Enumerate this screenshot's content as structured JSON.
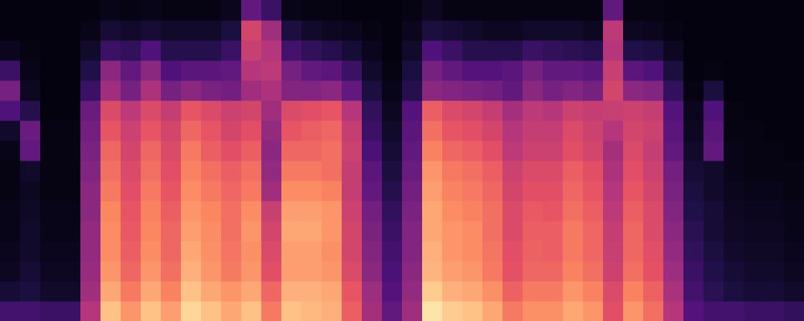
{
  "chart_data": {
    "type": "heatmap",
    "xlim": [
      0,
      40
    ],
    "ylim": [
      0,
      16
    ],
    "tick_labels": false,
    "color_range": [
      0,
      100
    ],
    "cells": [
      [
        22,
        22,
        20,
        20,
        50,
        88,
        78,
        88,
        80,
        92,
        88,
        82,
        88,
        72,
        88,
        86,
        84,
        66,
        46,
        30,
        45,
        95,
        90,
        88,
        82,
        72,
        77,
        77,
        82,
        78,
        62,
        78,
        70,
        50,
        26,
        22,
        22,
        20,
        20,
        18
      ],
      [
        10,
        12,
        8,
        8,
        45,
        82,
        72,
        82,
        74,
        88,
        82,
        78,
        82,
        68,
        84,
        84,
        82,
        64,
        44,
        26,
        42,
        90,
        84,
        82,
        77,
        67,
        72,
        72,
        78,
        74,
        60,
        74,
        67,
        47,
        22,
        16,
        12,
        10,
        10,
        8
      ],
      [
        6,
        10,
        6,
        6,
        43,
        78,
        68,
        78,
        70,
        84,
        78,
        72,
        78,
        62,
        80,
        80,
        78,
        60,
        40,
        24,
        40,
        85,
        80,
        78,
        72,
        63,
        68,
        68,
        74,
        70,
        56,
        70,
        63,
        44,
        20,
        14,
        10,
        8,
        8,
        6
      ],
      [
        5,
        8,
        5,
        5,
        42,
        76,
        66,
        76,
        68,
        82,
        77,
        71,
        77,
        60,
        80,
        80,
        77,
        58,
        38,
        22,
        38,
        84,
        78,
        76,
        71,
        62,
        67,
        66,
        72,
        68,
        55,
        68,
        62,
        42,
        18,
        12,
        8,
        7,
        7,
        5
      ],
      [
        4,
        8,
        4,
        4,
        42,
        76,
        65,
        75,
        68,
        80,
        76,
        70,
        78,
        58,
        82,
        82,
        78,
        58,
        36,
        20,
        38,
        82,
        78,
        76,
        70,
        60,
        66,
        66,
        72,
        68,
        54,
        68,
        60,
        40,
        16,
        10,
        7,
        6,
        6,
        4
      ],
      [
        4,
        7,
        4,
        4,
        40,
        75,
        64,
        74,
        66,
        78,
        75,
        70,
        76,
        55,
        80,
        80,
        78,
        56,
        34,
        18,
        36,
        82,
        76,
        74,
        70,
        60,
        65,
        64,
        70,
        66,
        52,
        66,
        60,
        38,
        14,
        10,
        6,
        5,
        5,
        4
      ],
      [
        3,
        6,
        3,
        3,
        40,
        72,
        62,
        72,
        64,
        76,
        72,
        68,
        72,
        45,
        76,
        76,
        74,
        54,
        30,
        15,
        34,
        80,
        74,
        72,
        68,
        58,
        62,
        62,
        68,
        64,
        50,
        64,
        58,
        36,
        12,
        8,
        5,
        4,
        4,
        3
      ],
      [
        3,
        8,
        3,
        3,
        38,
        70,
        60,
        70,
        62,
        74,
        70,
        66,
        70,
        42,
        72,
        72,
        70,
        54,
        28,
        12,
        32,
        78,
        72,
        70,
        66,
        56,
        60,
        60,
        66,
        62,
        48,
        62,
        56,
        34,
        10,
        8,
        4,
        3,
        3,
        3
      ],
      [
        4,
        30,
        3,
        3,
        36,
        68,
        58,
        68,
        60,
        72,
        66,
        62,
        66,
        40,
        68,
        68,
        70,
        56,
        24,
        10,
        30,
        74,
        68,
        66,
        62,
        52,
        56,
        56,
        62,
        58,
        46,
        60,
        54,
        30,
        8,
        30,
        4,
        3,
        3,
        2
      ],
      [
        8,
        32,
        3,
        3,
        34,
        64,
        56,
        64,
        58,
        68,
        64,
        58,
        62,
        42,
        64,
        66,
        68,
        54,
        20,
        8,
        28,
        70,
        64,
        62,
        58,
        50,
        54,
        54,
        60,
        56,
        50,
        58,
        56,
        28,
        6,
        28,
        3,
        3,
        2,
        2
      ],
      [
        25,
        15,
        2,
        2,
        32,
        60,
        52,
        60,
        54,
        64,
        60,
        56,
        58,
        45,
        60,
        62,
        64,
        50,
        18,
        6,
        26,
        66,
        60,
        58,
        54,
        46,
        52,
        50,
        56,
        54,
        55,
        56,
        54,
        26,
        5,
        25,
        3,
        2,
        2,
        2
      ],
      [
        35,
        6,
        2,
        2,
        20,
        45,
        35,
        48,
        35,
        40,
        36,
        34,
        45,
        48,
        38,
        38,
        40,
        30,
        12,
        4,
        15,
        40,
        38,
        36,
        34,
        30,
        40,
        35,
        38,
        35,
        58,
        40,
        38,
        18,
        3,
        12,
        2,
        2,
        2,
        2
      ],
      [
        20,
        4,
        2,
        2,
        14,
        40,
        30,
        40,
        25,
        28,
        28,
        30,
        50,
        52,
        35,
        30,
        28,
        20,
        8,
        3,
        12,
        35,
        30,
        26,
        26,
        28,
        35,
        30,
        30,
        28,
        55,
        28,
        25,
        12,
        2,
        3,
        2,
        2,
        2,
        2
      ],
      [
        5,
        3,
        2,
        2,
        8,
        20,
        18,
        25,
        15,
        15,
        15,
        20,
        55,
        50,
        22,
        18,
        15,
        10,
        5,
        2,
        8,
        25,
        20,
        15,
        15,
        15,
        20,
        18,
        16,
        15,
        50,
        14,
        12,
        6,
        2,
        2,
        2,
        2,
        2,
        2
      ],
      [
        2,
        2,
        2,
        2,
        4,
        10,
        8,
        10,
        8,
        8,
        8,
        12,
        58,
        45,
        12,
        8,
        6,
        5,
        3,
        2,
        5,
        12,
        10,
        8,
        6,
        6,
        8,
        8,
        8,
        6,
        52,
        6,
        5,
        3,
        2,
        2,
        2,
        2,
        2,
        2
      ],
      [
        2,
        2,
        2,
        2,
        2,
        4,
        3,
        4,
        3,
        3,
        3,
        5,
        30,
        20,
        4,
        3,
        3,
        2,
        2,
        2,
        3,
        6,
        3,
        3,
        3,
        3,
        3,
        3,
        3,
        3,
        30,
        3,
        3,
        2,
        2,
        2,
        2,
        2,
        2,
        2
      ]
    ]
  }
}
